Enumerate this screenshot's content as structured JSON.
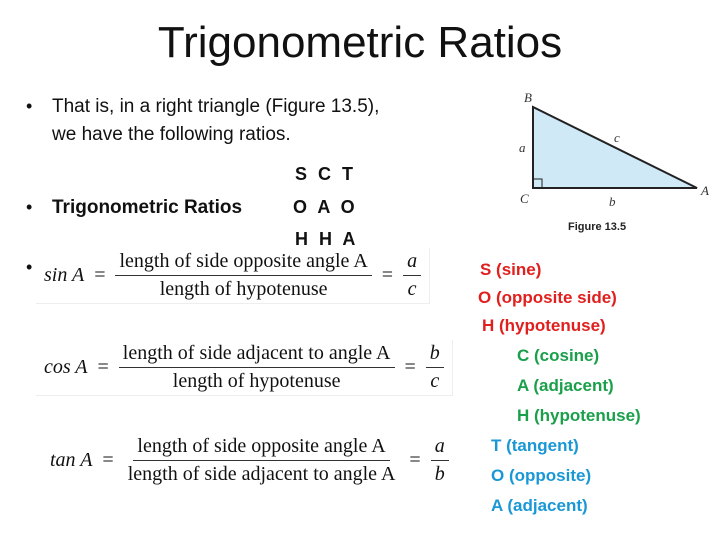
{
  "title": "Trigonometric Ratios",
  "intro": {
    "line1": "That is, in a right triangle (Figure 13.5),",
    "line2": "we have the following ratios."
  },
  "ratios_heading": "Trigonometric Ratios",
  "mnemonic": {
    "row1": "S C T",
    "row2": "O A O",
    "row3": "H H A"
  },
  "figure": {
    "caption": "Figure 13.5",
    "vertices": {
      "A": "A",
      "B": "B",
      "C": "C"
    },
    "sides": {
      "a": "a",
      "b": "b",
      "c": "c"
    },
    "fill": "#cfe9f7"
  },
  "formulas": [
    {
      "lhs": "sin A",
      "num": "length of side opposite angle A",
      "den": "length of hypotenuse",
      "rnum": "a",
      "rden": "c"
    },
    {
      "lhs": "cos A",
      "num": "length of side adjacent to angle A",
      "den": "length of hypotenuse",
      "rnum": "b",
      "rden": "c"
    },
    {
      "lhs": "tan A",
      "num": "length of side opposite angle A",
      "den": "length of side adjacent to angle A",
      "rnum": "a",
      "rden": "b"
    }
  ],
  "legend": {
    "colors": {
      "sin": "#e0201e",
      "cos": "#1a9f4a",
      "tan": "#1a98d5"
    },
    "sin": [
      "S (sine)",
      "O (opposite side)",
      "H (hypotenuse)"
    ],
    "cos": [
      "C (cosine)",
      "A (adjacent)",
      "H (hypotenuse)"
    ],
    "tan": [
      "T (tangent)",
      "O (opposite)",
      "A (adjacent)"
    ]
  }
}
